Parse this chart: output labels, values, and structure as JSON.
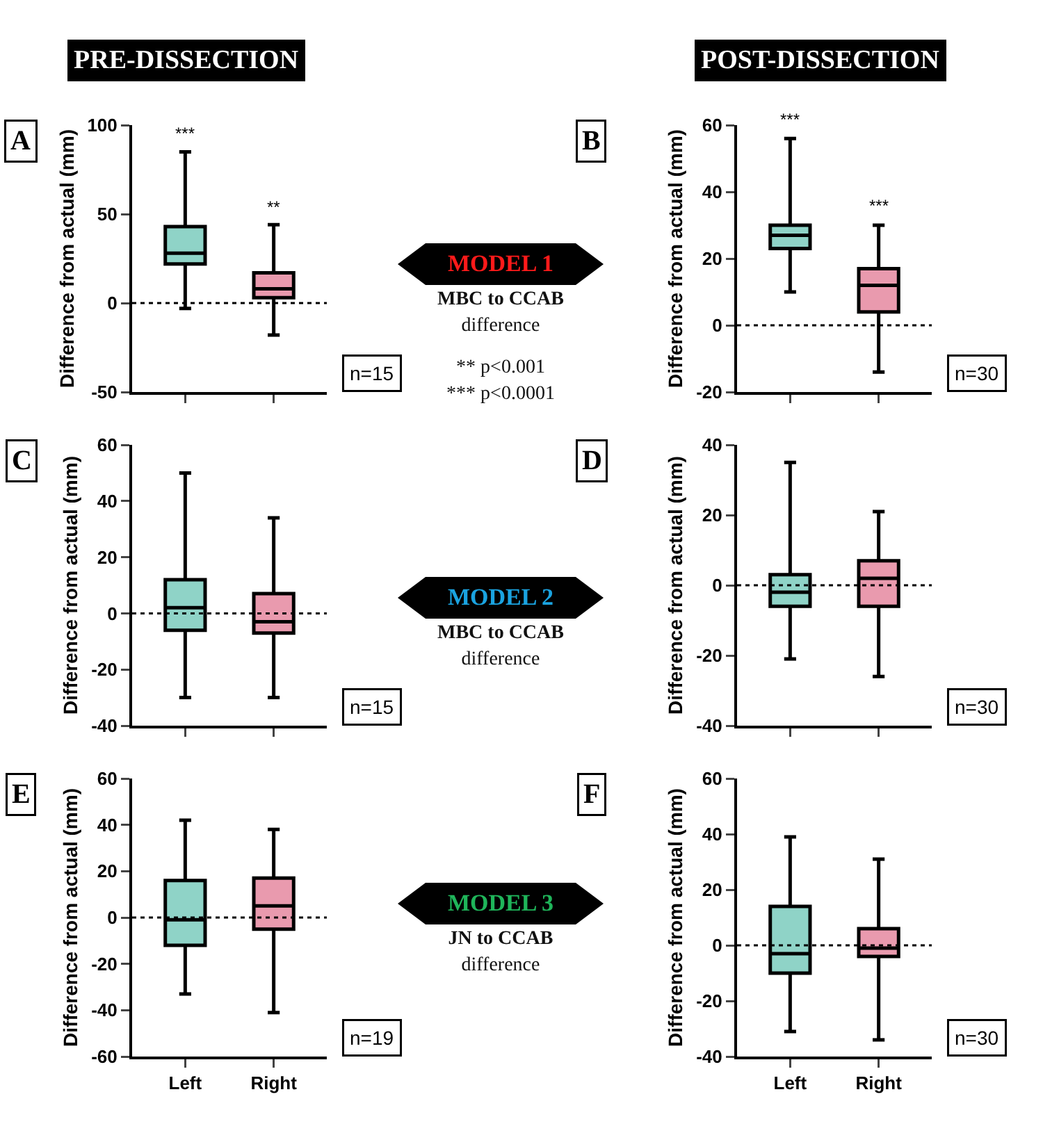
{
  "chart_data": [
    {
      "type": "box",
      "title": "A",
      "subtitle": "PRE-DISSECTION",
      "ylabel": "Difference from actual (mm)",
      "categories": [
        "Left",
        "Right"
      ],
      "colors": [
        "#8fd3c7",
        "#e99aae"
      ],
      "tick_labels": "y",
      "ylim": [
        -50,
        100
      ],
      "yticks": [
        -50,
        0,
        50,
        100
      ],
      "boxes": [
        {
          "low": -3,
          "q1": 22,
          "median": 28,
          "q3": 43,
          "high": 85
        },
        {
          "low": -18,
          "q1": 3,
          "median": 8,
          "q3": 17,
          "high": 44
        }
      ],
      "ref_lines": [
        {
          "axis": "y",
          "value": 0,
          "line_style": "dotted"
        }
      ],
      "annotations": [
        {
          "text": "***",
          "x": "Left",
          "y": 88
        },
        {
          "text": "**",
          "x": "Right",
          "y": 47
        },
        "n=15"
      ]
    },
    {
      "type": "other",
      "title": "MODEL 1",
      "color": "#ff1a1a",
      "annotations": [
        "MBC to CCAB",
        "difference",
        "** p<0.001",
        "*** p<0.0001"
      ]
    },
    {
      "type": "box",
      "title": "B",
      "subtitle": "POST-DISSECTION",
      "ylabel": "Difference from actual (mm)",
      "categories": [
        "Left",
        "Right"
      ],
      "colors": [
        "#8fd3c7",
        "#e99aae"
      ],
      "tick_labels": "y",
      "ylim": [
        -20,
        60
      ],
      "yticks": [
        -20,
        0,
        20,
        40,
        60
      ],
      "boxes": [
        {
          "low": 10,
          "q1": 23,
          "median": 27,
          "q3": 30,
          "high": 56
        },
        {
          "low": -14,
          "q1": 4,
          "median": 12,
          "q3": 17,
          "high": 30
        }
      ],
      "ref_lines": [
        {
          "axis": "y",
          "value": 0,
          "line_style": "dotted"
        }
      ],
      "annotations": [
        {
          "text": "***",
          "x": "Left",
          "y": 58
        },
        {
          "text": "***",
          "x": "Right",
          "y": 32
        },
        "n=30"
      ]
    },
    {
      "type": "box",
      "title": "C",
      "ylabel": "Difference from actual (mm)",
      "categories": [
        "Left",
        "Right"
      ],
      "colors": [
        "#8fd3c7",
        "#e99aae"
      ],
      "tick_labels": "y",
      "ylim": [
        -40,
        60
      ],
      "yticks": [
        -40,
        -20,
        0,
        20,
        40,
        60
      ],
      "boxes": [
        {
          "low": -30,
          "q1": -6,
          "median": 2,
          "q3": 12,
          "high": 50
        },
        {
          "low": -30,
          "q1": -7,
          "median": -3,
          "q3": 7,
          "high": 34
        }
      ],
      "ref_lines": [
        {
          "axis": "y",
          "value": 0,
          "line_style": "dotted"
        }
      ],
      "annotations": [
        "n=15"
      ]
    },
    {
      "type": "other",
      "title": "MODEL 2",
      "color": "#1aa3e0",
      "annotations": [
        "MBC to CCAB",
        "difference"
      ]
    },
    {
      "type": "box",
      "title": "D",
      "ylabel": "Difference from actual (mm)",
      "categories": [
        "Left",
        "Right"
      ],
      "colors": [
        "#8fd3c7",
        "#e99aae"
      ],
      "tick_labels": "y",
      "ylim": [
        -40,
        40
      ],
      "yticks": [
        -40,
        -20,
        0,
        20,
        40
      ],
      "boxes": [
        {
          "low": -21,
          "q1": -6,
          "median": -2,
          "q3": 3,
          "high": 35
        },
        {
          "low": -26,
          "q1": -6,
          "median": 2,
          "q3": 7,
          "high": 21
        }
      ],
      "ref_lines": [
        {
          "axis": "y",
          "value": 0,
          "line_style": "dotted"
        }
      ],
      "annotations": [
        "n=30"
      ]
    },
    {
      "type": "box",
      "title": "E",
      "ylabel": "Difference from actual (mm)",
      "categories": [
        "Left",
        "Right"
      ],
      "colors": [
        "#8fd3c7",
        "#e99aae"
      ],
      "ylim": [
        -60,
        60
      ],
      "yticks": [
        -60,
        -40,
        -20,
        0,
        20,
        40,
        60
      ],
      "boxes": [
        {
          "low": -33,
          "q1": -12,
          "median": -1,
          "q3": 16,
          "high": 42
        },
        {
          "low": -41,
          "q1": -5,
          "median": 5,
          "q3": 17,
          "high": 38
        }
      ],
      "ref_lines": [
        {
          "axis": "y",
          "value": 0,
          "line_style": "dotted"
        }
      ],
      "annotations": [
        "n=19"
      ]
    },
    {
      "type": "other",
      "title": "MODEL 3",
      "color": "#1fb55a",
      "annotations": [
        "JN to CCAB",
        "difference"
      ]
    },
    {
      "type": "box",
      "title": "F",
      "ylabel": "Difference from actual (mm)",
      "categories": [
        "Left",
        "Right"
      ],
      "colors": [
        "#8fd3c7",
        "#e99aae"
      ],
      "ylim": [
        -40,
        60
      ],
      "yticks": [
        -40,
        -20,
        0,
        20,
        40,
        60
      ],
      "boxes": [
        {
          "low": -31,
          "q1": -10,
          "median": -3,
          "q3": 14,
          "high": 39
        },
        {
          "low": -34,
          "q1": -4,
          "median": -1,
          "q3": 6,
          "high": 31
        }
      ],
      "ref_lines": [
        {
          "axis": "y",
          "value": 0,
          "line_style": "dotted"
        }
      ],
      "annotations": [
        "n=30"
      ]
    }
  ]
}
